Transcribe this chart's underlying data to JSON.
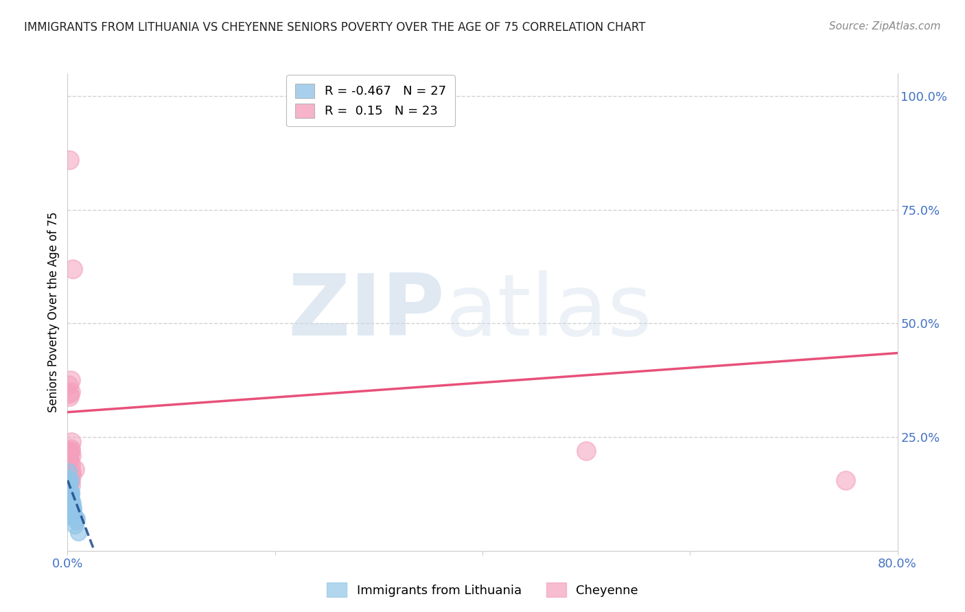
{
  "title": "IMMIGRANTS FROM LITHUANIA VS CHEYENNE SENIORS POVERTY OVER THE AGE OF 75 CORRELATION CHART",
  "source": "Source: ZipAtlas.com",
  "ylabel": "Seniors Poverty Over the Age of 75",
  "xlim": [
    0.0,
    0.8
  ],
  "ylim": [
    0.0,
    1.05
  ],
  "ytick_right_labels": [
    "100.0%",
    "75.0%",
    "50.0%",
    "25.0%"
  ],
  "ytick_right_vals": [
    1.0,
    0.75,
    0.5,
    0.25
  ],
  "blue_color": "#92c5e8",
  "pink_color": "#f4a0bc",
  "blue_line_color": "#1a4a8a",
  "pink_line_color": "#e8507a",
  "legend_blue_label": "Immigrants from Lithuania",
  "legend_pink_label": "Cheyenne",
  "R_blue": -0.467,
  "N_blue": 27,
  "R_pink": 0.15,
  "N_pink": 23,
  "blue_x": [
    0.001,
    0.002,
    0.003,
    0.001,
    0.002,
    0.002,
    0.003,
    0.003,
    0.002,
    0.001,
    0.004,
    0.003,
    0.003,
    0.004,
    0.002,
    0.005,
    0.004,
    0.003,
    0.006,
    0.007,
    0.008,
    0.006,
    0.005,
    0.007,
    0.009,
    0.004,
    0.01
  ],
  "blue_y": [
    0.16,
    0.13,
    0.12,
    0.175,
    0.145,
    0.115,
    0.155,
    0.1,
    0.135,
    0.095,
    0.125,
    0.11,
    0.1,
    0.13,
    0.14,
    0.09,
    0.085,
    0.075,
    0.095,
    0.075,
    0.065,
    0.085,
    0.105,
    0.055,
    0.07,
    0.115,
    0.04
  ],
  "pink_x": [
    0.001,
    0.002,
    0.002,
    0.001,
    0.002,
    0.003,
    0.002,
    0.003,
    0.002,
    0.003,
    0.002,
    0.003,
    0.004,
    0.005,
    0.003,
    0.004,
    0.003,
    0.007,
    0.004,
    0.5,
    0.75,
    0.004,
    0.003
  ],
  "pink_y": [
    0.365,
    0.86,
    0.2,
    0.22,
    0.2,
    0.225,
    0.34,
    0.22,
    0.215,
    0.35,
    0.345,
    0.155,
    0.24,
    0.62,
    0.19,
    0.21,
    0.375,
    0.18,
    0.165,
    0.22,
    0.155,
    0.175,
    0.145
  ],
  "pink_trend_x": [
    0.0,
    0.8
  ],
  "pink_trend_y": [
    0.305,
    0.435
  ],
  "blue_trend_x": [
    0.0,
    0.025
  ],
  "blue_trend_y": [
    0.155,
    0.005
  ],
  "watermark_zip": "ZIP",
  "watermark_atlas": "atlas",
  "bg_color": "#ffffff",
  "grid_color": "#cccccc",
  "axis_label_color": "#4472c4",
  "title_color": "#222222"
}
